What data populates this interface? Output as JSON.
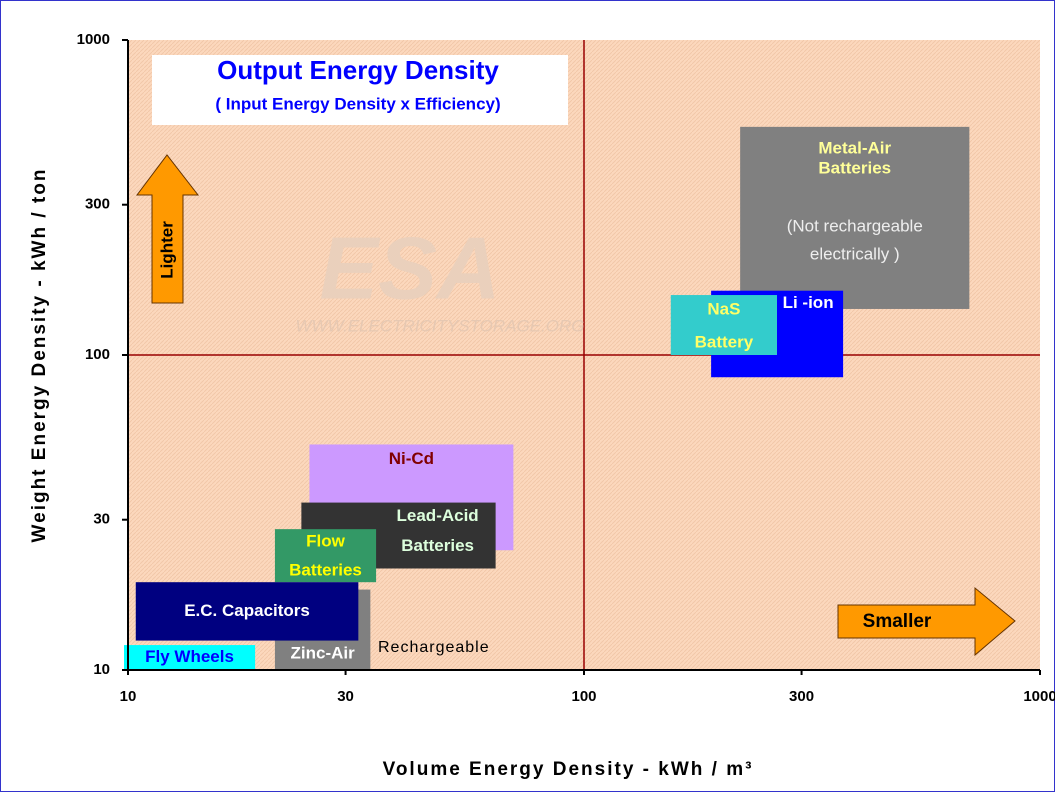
{
  "chart_data": {
    "type": "region",
    "title": "Output Energy Density",
    "subtitle": "( Input Energy Density x Efficiency)",
    "xlabel": "Volume Energy Density  -  kWh / m³",
    "ylabel": "Weight Energy Density  -  kWh / ton",
    "xlim": [
      10,
      1000
    ],
    "ylim": [
      10,
      1000
    ],
    "xticks": [
      10,
      30,
      100,
      300,
      1000
    ],
    "yticks": [
      10,
      30,
      100,
      300,
      1000
    ],
    "log_x": true,
    "log_y": true,
    "grid": true,
    "grid_color": "#990000",
    "regions": [
      {
        "label": [
          "Metal-Air",
          "Batteries"
        ],
        "note": [
          "(Not rechargeable",
          "electrically )"
        ],
        "x": [
          220,
          700
        ],
        "y": [
          140,
          530
        ],
        "color": "#808080",
        "text_color": "#ffff99"
      },
      {
        "label": [
          "Li -ion"
        ],
        "x": [
          190,
          370
        ],
        "y": [
          85,
          160
        ],
        "color": "#0000ff",
        "text_color": "#ffffff"
      },
      {
        "label": [
          "NaS",
          "Battery"
        ],
        "x": [
          155,
          265
        ],
        "y": [
          100,
          155
        ],
        "color": "#33cccc",
        "text_color": "#ffff66"
      },
      {
        "label": [
          "Ni-Cd"
        ],
        "x": [
          25,
          70
        ],
        "y": [
          24,
          52
        ],
        "color": "#cc99ff",
        "text_color": "#800000"
      },
      {
        "label": [
          "Lead-Acid",
          "Batteries"
        ],
        "x": [
          24,
          64
        ],
        "y": [
          21,
          34
        ],
        "color": "#333333",
        "text_color": "#ddffdd"
      },
      {
        "label": [
          "Zinc-Air"
        ],
        "x": [
          21,
          34
        ],
        "y": [
          10,
          18
        ],
        "color": "#808080",
        "text_color": "#ffffff"
      },
      {
        "label": [
          "Flow",
          "Batteries"
        ],
        "x": [
          21,
          35
        ],
        "y": [
          19,
          28
        ],
        "color": "#339966",
        "text_color": "#ffff00"
      },
      {
        "label": [
          "E.C. Capacitors"
        ],
        "x": [
          10.4,
          32
        ],
        "y": [
          12.4,
          19
        ],
        "color": "#000080",
        "text_color": "#ffffff"
      },
      {
        "label": [
          "Fly Wheels"
        ],
        "x": [
          9.8,
          19
        ],
        "y": [
          10,
          12
        ],
        "color": "#00ffff",
        "text_color": "#0000ff"
      }
    ],
    "annotations": {
      "rechargeable": "Rechargeable",
      "lighter": "Lighter",
      "smaller": "Smaller",
      "watermark": "ESA",
      "watermark_url": "WWW.ELECTRICITYSTORAGE.ORG"
    }
  }
}
